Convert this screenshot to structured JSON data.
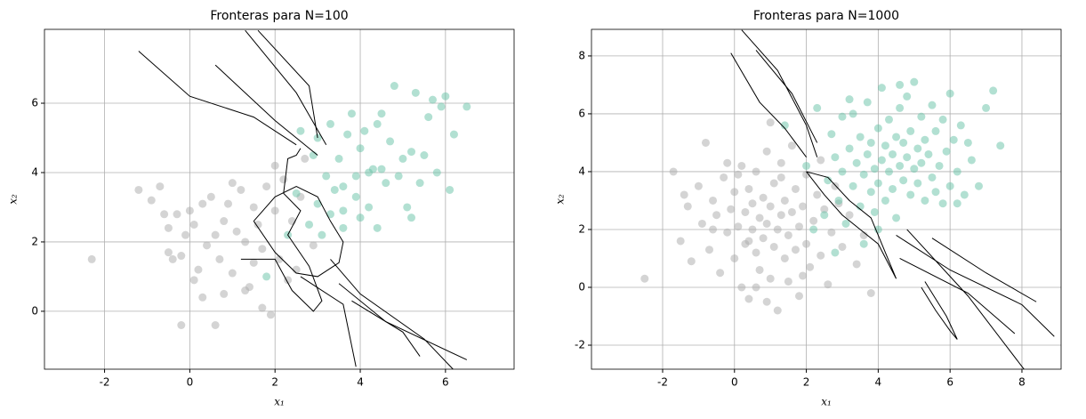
{
  "chart_data": [
    {
      "type": "scatter",
      "title": "Fronteras para N=100",
      "xlabel": "x₁",
      "ylabel": "x₂",
      "xlim": [
        -3.41,
        7.61
      ],
      "ylim": [
        -1.67,
        8.13
      ],
      "xticks": [
        -2,
        0,
        2,
        4,
        6
      ],
      "yticks": [
        0,
        2,
        4,
        6
      ],
      "grid": true,
      "series": [
        {
          "color": "#aaaaaa",
          "x": [
            -2.3,
            -1.2,
            -0.9,
            -0.7,
            -0.6,
            -0.5,
            -0.4,
            -0.3,
            -0.2,
            -0.1,
            0,
            0.1,
            0.2,
            0.3,
            0.4,
            0.5,
            0.6,
            0.7,
            0.8,
            0.9,
            1,
            1.1,
            1.2,
            1.3,
            1.4,
            1.5,
            1.6,
            1.7,
            1.8,
            1.9,
            2.0,
            2.1,
            2.2,
            2.3,
            2.4,
            2.5,
            2.6,
            -0.2,
            0.6,
            1.7,
            0.1,
            1.5,
            2.9,
            1.0,
            0.3,
            -0.5,
            0.8,
            2.0,
            1.3,
            2.7
          ],
          "y": [
            1.5,
            3.5,
            3.2,
            3.6,
            2.8,
            1.7,
            1.5,
            2.8,
            1.6,
            2.2,
            2.9,
            2.5,
            1.2,
            0.4,
            1.9,
            3.3,
            2.2,
            1.5,
            2.6,
            3.1,
            1.1,
            2.3,
            3.5,
            2.0,
            0.7,
            3.0,
            2.5,
            1.8,
            3.6,
            -0.1,
            2.9,
            1.5,
            3.8,
            0.9,
            2.6,
            1.2,
            3.3,
            -0.4,
            -0.4,
            0.1,
            0.9,
            1.4,
            1.9,
            3.7,
            3.1,
            2.4,
            0.5,
            4.2,
            0.6,
            4.4
          ]
        },
        {
          "color": "#66c2a5",
          "x": [
            2.6,
            2.9,
            3.0,
            3.2,
            3.3,
            3.4,
            3.5,
            3.6,
            3.7,
            3.8,
            3.9,
            4.0,
            4.1,
            4.2,
            4.3,
            4.4,
            4.5,
            4.6,
            4.7,
            4.8,
            4.9,
            5.0,
            5.1,
            5.2,
            5.3,
            5.4,
            5.5,
            5.6,
            5.7,
            5.8,
            5.9,
            6.0,
            6.1,
            6.2,
            6.5,
            3.1,
            3.3,
            3.6,
            4.0,
            4.4,
            5.2,
            2.3,
            2.8,
            1.8,
            3.9,
            4.5,
            3.6,
            4.2,
            3.0,
            2.5
          ],
          "y": [
            5.2,
            4.5,
            5.0,
            3.9,
            5.4,
            3.5,
            4.4,
            2.9,
            5.1,
            5.7,
            3.3,
            4.7,
            5.2,
            3.0,
            4.1,
            5.4,
            5.7,
            3.7,
            4.9,
            6.5,
            3.9,
            4.4,
            3.0,
            4.6,
            6.3,
            3.7,
            4.5,
            5.6,
            6.1,
            4.0,
            5.9,
            6.2,
            3.5,
            5.1,
            5.9,
            2.2,
            2.8,
            2.4,
            2.7,
            2.4,
            2.7,
            2.2,
            2.5,
            1.0,
            3.9,
            4.1,
            3.6,
            4.0,
            3.1,
            3.4
          ]
        }
      ],
      "boundaries": [
        {
          "x": [
            -1.2,
            0,
            1.5,
            2.5
          ],
          "y": [
            7.5,
            6.2,
            5.6,
            4.8
          ]
        },
        {
          "x": [
            0.6,
            2.0,
            3.0
          ],
          "y": [
            7.1,
            5.5,
            4.5
          ]
        },
        {
          "x": [
            1.3,
            2.5,
            3.2
          ],
          "y": [
            8.1,
            6.3,
            4.8
          ]
        },
        {
          "x": [
            1.6,
            2.8,
            3.0
          ],
          "y": [
            8.1,
            6.5,
            5.0
          ]
        },
        {
          "x": [
            3.3,
            4.0,
            5.5,
            6.2
          ],
          "y": [
            1.5,
            0.5,
            -0.8,
            -1.7
          ]
        },
        {
          "x": [
            3.5,
            4.6,
            6.5
          ],
          "y": [
            0.8,
            -0.3,
            -1.4
          ]
        },
        {
          "x": [
            2.6,
            3.6,
            3.9
          ],
          "y": [
            1.0,
            0.2,
            -1.6
          ]
        },
        {
          "x": [
            3.8,
            5.0,
            5.4
          ],
          "y": [
            0.3,
            -0.6,
            -1.3
          ]
        },
        {
          "x": [
            1.5,
            2.0,
            2.5,
            3.0,
            3.3,
            3.6,
            3.5,
            3.0,
            2.5,
            2.0,
            1.5
          ],
          "y": [
            2.6,
            3.3,
            3.6,
            3.3,
            2.6,
            2.0,
            1.4,
            1.0,
            1.1,
            1.7,
            2.6
          ]
        },
        {
          "x": [
            1.2,
            2.0,
            2.4,
            2.9,
            3.1,
            2.8,
            2.3,
            2.6,
            2.2,
            2.3,
            2.5,
            2.6
          ],
          "y": [
            1.5,
            1.5,
            0.6,
            0.0,
            0.3,
            1.3,
            2.2,
            2.9,
            3.4,
            4.4,
            4.5,
            4.7
          ]
        }
      ]
    },
    {
      "type": "scatter",
      "title": "Fronteras para N=1000",
      "xlabel": "x₁",
      "ylabel": "x₂",
      "xlim": [
        -3.98,
        9.09
      ],
      "ylim": [
        -2.83,
        8.92
      ],
      "xticks": [
        -2,
        0,
        2,
        4,
        6,
        8
      ],
      "yticks": [
        -2,
        0,
        2,
        4,
        6,
        8
      ],
      "grid": true,
      "series": [
        {
          "color": "#aaaaaa",
          "x": [
            -2.5,
            -1.7,
            -1.5,
            -1.3,
            -1.2,
            -1.0,
            -0.9,
            -0.8,
            -0.7,
            -0.6,
            -0.5,
            -0.4,
            -0.3,
            -0.2,
            -0.1,
            0.0,
            0.0,
            0.1,
            0.2,
            0.2,
            0.3,
            0.3,
            0.4,
            0.4,
            0.5,
            0.5,
            0.6,
            0.6,
            0.7,
            0.7,
            0.8,
            0.8,
            0.9,
            0.9,
            1.0,
            1.0,
            1.1,
            1.1,
            1.2,
            1.2,
            1.3,
            1.3,
            1.4,
            1.4,
            1.5,
            1.5,
            1.6,
            1.6,
            1.7,
            1.7,
            1.8,
            1.8,
            1.9,
            2.0,
            2.0,
            2.1,
            2.2,
            2.3,
            2.4,
            2.5,
            2.6,
            2.7,
            2.8,
            3.0,
            3.2,
            3.4,
            3.6,
            3.8,
            -0.6,
            0.1,
            0.6,
            1.0,
            1.9,
            2.4,
            -1.4,
            0.4,
            1.3,
            2.9,
            -0.2,
            0.9
          ],
          "y": [
            0.3,
            4.0,
            1.6,
            2.8,
            0.9,
            3.5,
            2.2,
            5.0,
            1.3,
            3.0,
            2.5,
            0.5,
            3.8,
            1.9,
            2.7,
            1.0,
            3.3,
            2.1,
            4.2,
            0.0,
            2.6,
            1.5,
            3.4,
            -0.4,
            2.0,
            2.9,
            1.2,
            4.0,
            2.4,
            0.6,
            3.1,
            1.7,
            2.2,
            4.7,
            0.3,
            2.8,
            1.4,
            3.6,
            2.0,
            -0.8,
            2.5,
            4.3,
            1.0,
            3.0,
            1.8,
            0.2,
            2.6,
            4.9,
            1.3,
            3.4,
            2.1,
            -0.3,
            2.8,
            1.5,
            3.9,
            0.7,
            2.3,
            3.2,
            1.1,
            2.7,
            0.1,
            1.9,
            3.5,
            1.4,
            2.5,
            0.8,
            1.8,
            -0.2,
            2.0,
            3.9,
            0.0,
            5.7,
            0.4,
            4.4,
            3.2,
            1.6,
            3.8,
            2.9,
            4.3,
            -0.5
          ]
        },
        {
          "color": "#66c2a5",
          "x": [
            1.4,
            2.0,
            2.3,
            2.5,
            2.6,
            2.7,
            2.8,
            2.9,
            3.0,
            3.0,
            3.1,
            3.2,
            3.3,
            3.3,
            3.4,
            3.5,
            3.5,
            3.6,
            3.7,
            3.7,
            3.8,
            3.8,
            3.9,
            3.9,
            4.0,
            4.0,
            4.1,
            4.1,
            4.2,
            4.2,
            4.3,
            4.3,
            4.4,
            4.4,
            4.5,
            4.5,
            4.6,
            4.6,
            4.7,
            4.7,
            4.8,
            4.8,
            4.9,
            4.9,
            5.0,
            5.0,
            5.1,
            5.1,
            5.2,
            5.2,
            5.3,
            5.3,
            5.4,
            5.5,
            5.5,
            5.6,
            5.7,
            5.8,
            5.8,
            5.9,
            6.0,
            6.0,
            6.1,
            6.2,
            6.3,
            6.4,
            6.5,
            6.6,
            6.8,
            7.0,
            7.2,
            7.4,
            3.6,
            2.8,
            2.2,
            4.0,
            5.6,
            6.2,
            3.2,
            4.6
          ],
          "y": [
            5.6,
            4.2,
            6.2,
            2.5,
            3.7,
            5.3,
            4.5,
            3.0,
            5.9,
            4.0,
            2.2,
            4.8,
            3.5,
            6.0,
            4.3,
            2.8,
            5.2,
            3.9,
            4.6,
            6.4,
            3.3,
            5.0,
            4.1,
            2.6,
            5.5,
            3.6,
            4.4,
            6.9,
            3.0,
            4.9,
            4.0,
            5.8,
            3.4,
            4.6,
            5.2,
            2.4,
            4.2,
            6.2,
            3.7,
            5.0,
            4.5,
            6.6,
            3.2,
            5.4,
            4.1,
            7.1,
            4.8,
            3.6,
            5.9,
            4.3,
            3.0,
            5.1,
            4.6,
            6.3,
            3.8,
            5.4,
            4.2,
            2.9,
            5.8,
            4.7,
            6.7,
            3.5,
            5.1,
            4.0,
            5.6,
            3.2,
            5.0,
            4.4,
            3.5,
            6.2,
            6.8,
            4.9,
            1.5,
            1.2,
            2.0,
            2.0,
            3.3,
            2.9,
            6.5,
            7.0
          ]
        }
      ],
      "boundaries": [
        {
          "x": [
            -0.1,
            0.7,
            1.4,
            2.0
          ],
          "y": [
            8.1,
            6.4,
            5.5,
            4.5
          ]
        },
        {
          "x": [
            0.2,
            1.2,
            2.0,
            2.3
          ],
          "y": [
            8.9,
            7.5,
            5.6,
            4.5
          ]
        },
        {
          "x": [
            0.6,
            1.6,
            2.3
          ],
          "y": [
            8.2,
            6.7,
            5.0
          ]
        },
        {
          "x": [
            4.5,
            6.0,
            8.0,
            8.9
          ],
          "y": [
            1.8,
            0.6,
            -0.6,
            -1.7
          ]
        },
        {
          "x": [
            4.6,
            6.5,
            7.8
          ],
          "y": [
            1.0,
            -0.2,
            -1.6
          ]
        },
        {
          "x": [
            5.5,
            7.0,
            8.4
          ],
          "y": [
            1.7,
            0.5,
            -0.5
          ]
        },
        {
          "x": [
            4.8,
            6.5,
            8.1
          ],
          "y": [
            2.0,
            -0.3,
            -2.9
          ]
        },
        {
          "x": [
            5.3,
            5.6,
            5.9,
            6.2,
            6.0,
            5.6,
            5.2
          ],
          "y": [
            0.2,
            -0.4,
            -1.0,
            -1.8,
            -1.5,
            -0.8,
            0.0
          ]
        },
        {
          "x": [
            2.0,
            2.5,
            3.0,
            3.5,
            4.0,
            4.5,
            4.3,
            3.8,
            3.2,
            2.6,
            2.0
          ],
          "y": [
            4.0,
            3.2,
            2.5,
            2.0,
            1.5,
            0.3,
            0.9,
            2.4,
            3.0,
            3.8,
            4.0
          ]
        }
      ]
    }
  ]
}
